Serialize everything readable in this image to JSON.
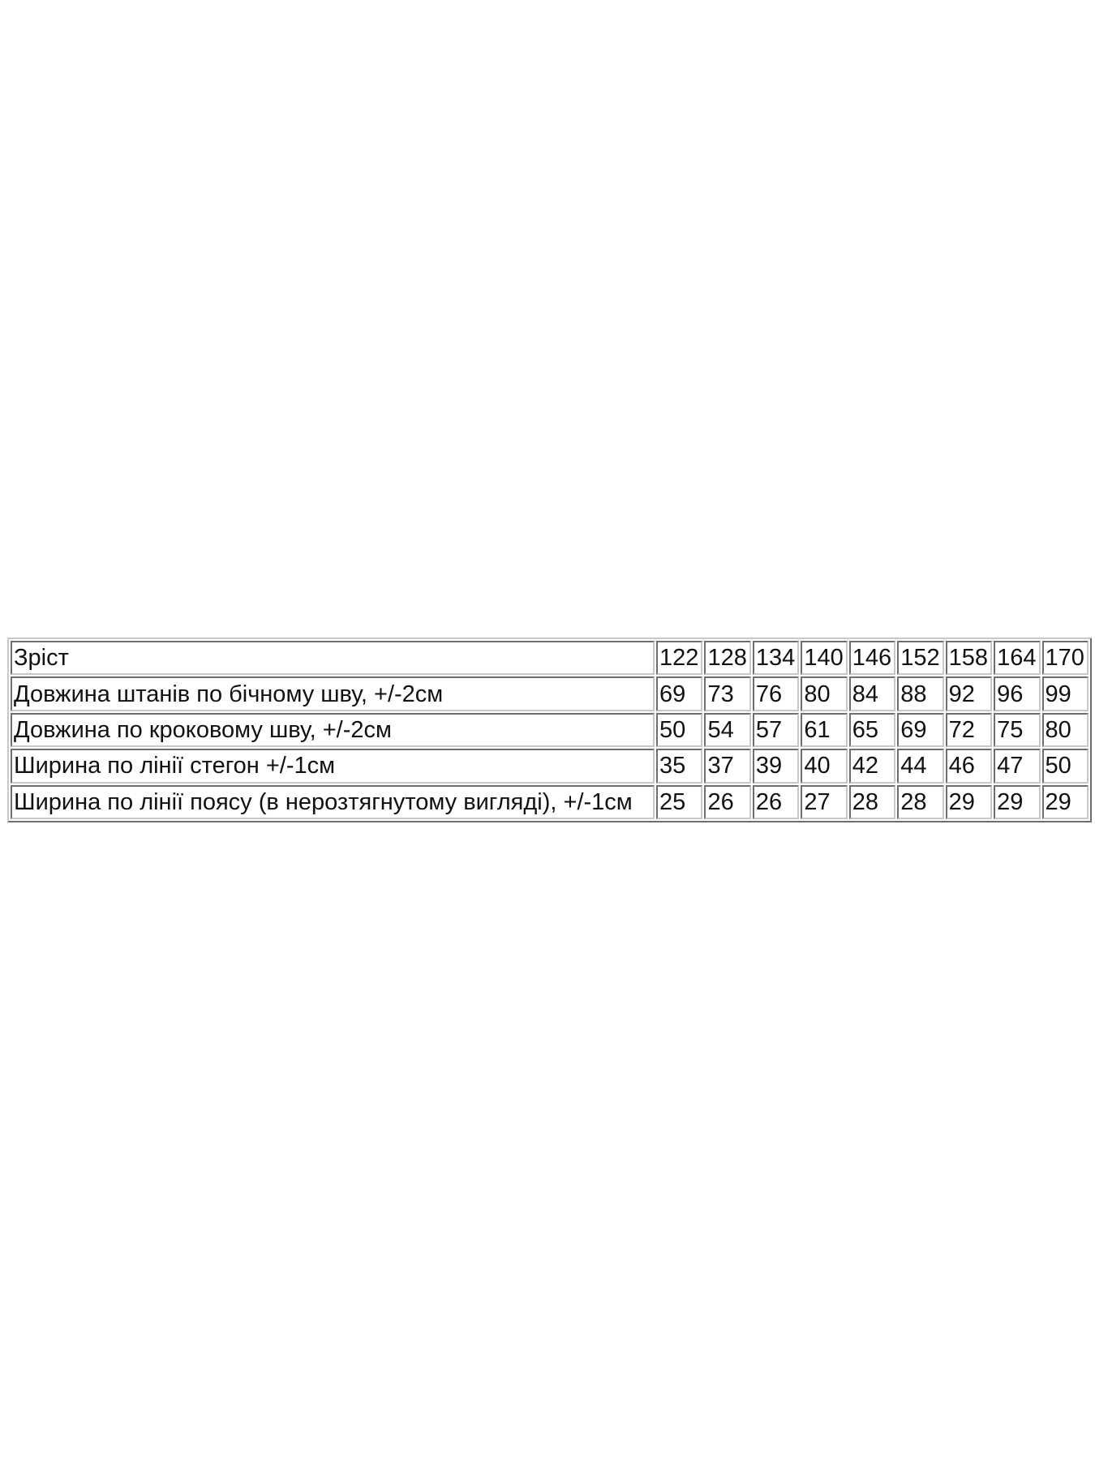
{
  "table": {
    "rows": [
      {
        "label": "Зріст",
        "values": [
          "122",
          "128",
          "134",
          "140",
          "146",
          "152",
          "158",
          "164",
          "170"
        ]
      },
      {
        "label": "Довжина штанів по бічному шву, +/-2см",
        "values": [
          "69",
          "73",
          "76",
          "80",
          "84",
          "88",
          "92",
          "96",
          "99"
        ]
      },
      {
        "label": "Довжина по кроковому шву, +/-2см",
        "values": [
          "50",
          "54",
          "57",
          "61",
          "65",
          "69",
          "72",
          "75",
          "80"
        ]
      },
      {
        "label": "Ширина по лінії стегон +/-1см",
        "values": [
          "35",
          "37",
          "39",
          "40",
          "42",
          "44",
          "46",
          "47",
          "50"
        ]
      },
      {
        "label": "Ширина по лінії поясу (в нерозтягнутому вигляді), +/-1см",
        "values": [
          "25",
          "26",
          "26",
          "27",
          "28",
          "28",
          "29",
          "29",
          "29"
        ]
      }
    ]
  }
}
